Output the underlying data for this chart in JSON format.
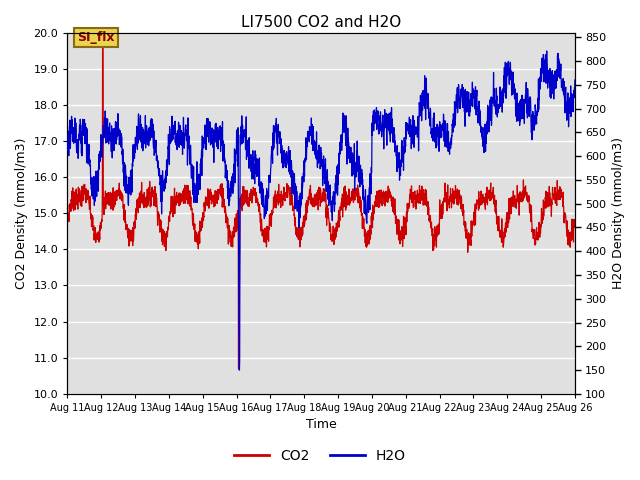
{
  "title": "LI7500 CO2 and H2O",
  "xlabel": "Time",
  "ylabel_left": "CO2 Density (mmol/m3)",
  "ylabel_right": "H2O Density (mmol/m3)",
  "ylim_left": [
    10.0,
    20.0
  ],
  "ylim_right": [
    100,
    860
  ],
  "yticks_left": [
    10.0,
    11.0,
    12.0,
    13.0,
    14.0,
    15.0,
    16.0,
    17.0,
    18.0,
    19.0,
    20.0
  ],
  "yticks_right": [
    100,
    150,
    200,
    250,
    300,
    350,
    400,
    450,
    500,
    550,
    600,
    650,
    700,
    750,
    800,
    850
  ],
  "xtick_labels": [
    "Aug 11",
    "Aug 12",
    "Aug 13",
    "Aug 14",
    "Aug 15",
    "Aug 16",
    "Aug 17",
    "Aug 18",
    "Aug 19",
    "Aug 20",
    "Aug 21",
    "Aug 22",
    "Aug 23",
    "Aug 24",
    "Aug 25",
    "Aug 26"
  ],
  "co2_color": "#cc0000",
  "h2o_color": "#0000cc",
  "background_color": "#e0e0e0",
  "annotation_text": "SI_flx",
  "legend_co2": "CO2",
  "legend_h2o": "H2O",
  "title_fontsize": 11,
  "axis_fontsize": 9,
  "tick_fontsize": 8
}
